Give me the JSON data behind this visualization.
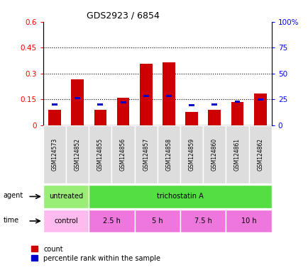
{
  "title": "GDS2923 / 6854",
  "samples": [
    "GSM124573",
    "GSM124852",
    "GSM124855",
    "GSM124856",
    "GSM124857",
    "GSM124858",
    "GSM124859",
    "GSM124860",
    "GSM124861",
    "GSM124862"
  ],
  "count_values": [
    0.09,
    0.265,
    0.09,
    0.16,
    0.355,
    0.365,
    0.075,
    0.09,
    0.135,
    0.185
  ],
  "percentile_values": [
    20,
    26,
    20,
    22,
    28,
    28,
    19,
    20,
    23,
    25
  ],
  "ylim_left": [
    0,
    0.6
  ],
  "ylim_right": [
    0,
    100
  ],
  "yticks_left": [
    0,
    0.15,
    0.3,
    0.45,
    0.6
  ],
  "yticks_right": [
    0,
    25,
    50,
    75,
    100
  ],
  "ytick_labels_left": [
    "0",
    "0.15",
    "0.3",
    "0.45",
    "0.6"
  ],
  "ytick_labels_right": [
    "0",
    "25",
    "50",
    "75",
    "100%"
  ],
  "hlines": [
    0.15,
    0.3,
    0.45
  ],
  "bar_color": "#cc0000",
  "percentile_color": "#0000cc",
  "agent_row": [
    {
      "label": "untreated",
      "span": [
        0,
        2
      ],
      "color": "#99ee77"
    },
    {
      "label": "trichostatin A",
      "span": [
        2,
        10
      ],
      "color": "#55dd44"
    }
  ],
  "time_row": [
    {
      "label": "control",
      "span": [
        0,
        2
      ],
      "color": "#ffbbee"
    },
    {
      "label": "2.5 h",
      "span": [
        2,
        4
      ],
      "color": "#ee77dd"
    },
    {
      "label": "5 h",
      "span": [
        4,
        6
      ],
      "color": "#ee77dd"
    },
    {
      "label": "7.5 h",
      "span": [
        6,
        8
      ],
      "color": "#ee77dd"
    },
    {
      "label": "10 h",
      "span": [
        8,
        10
      ],
      "color": "#ee77dd"
    }
  ],
  "legend_count_label": "count",
  "legend_percentile_label": "percentile rank within the sample",
  "agent_label": "agent",
  "time_label": "time",
  "bar_width": 0.55
}
